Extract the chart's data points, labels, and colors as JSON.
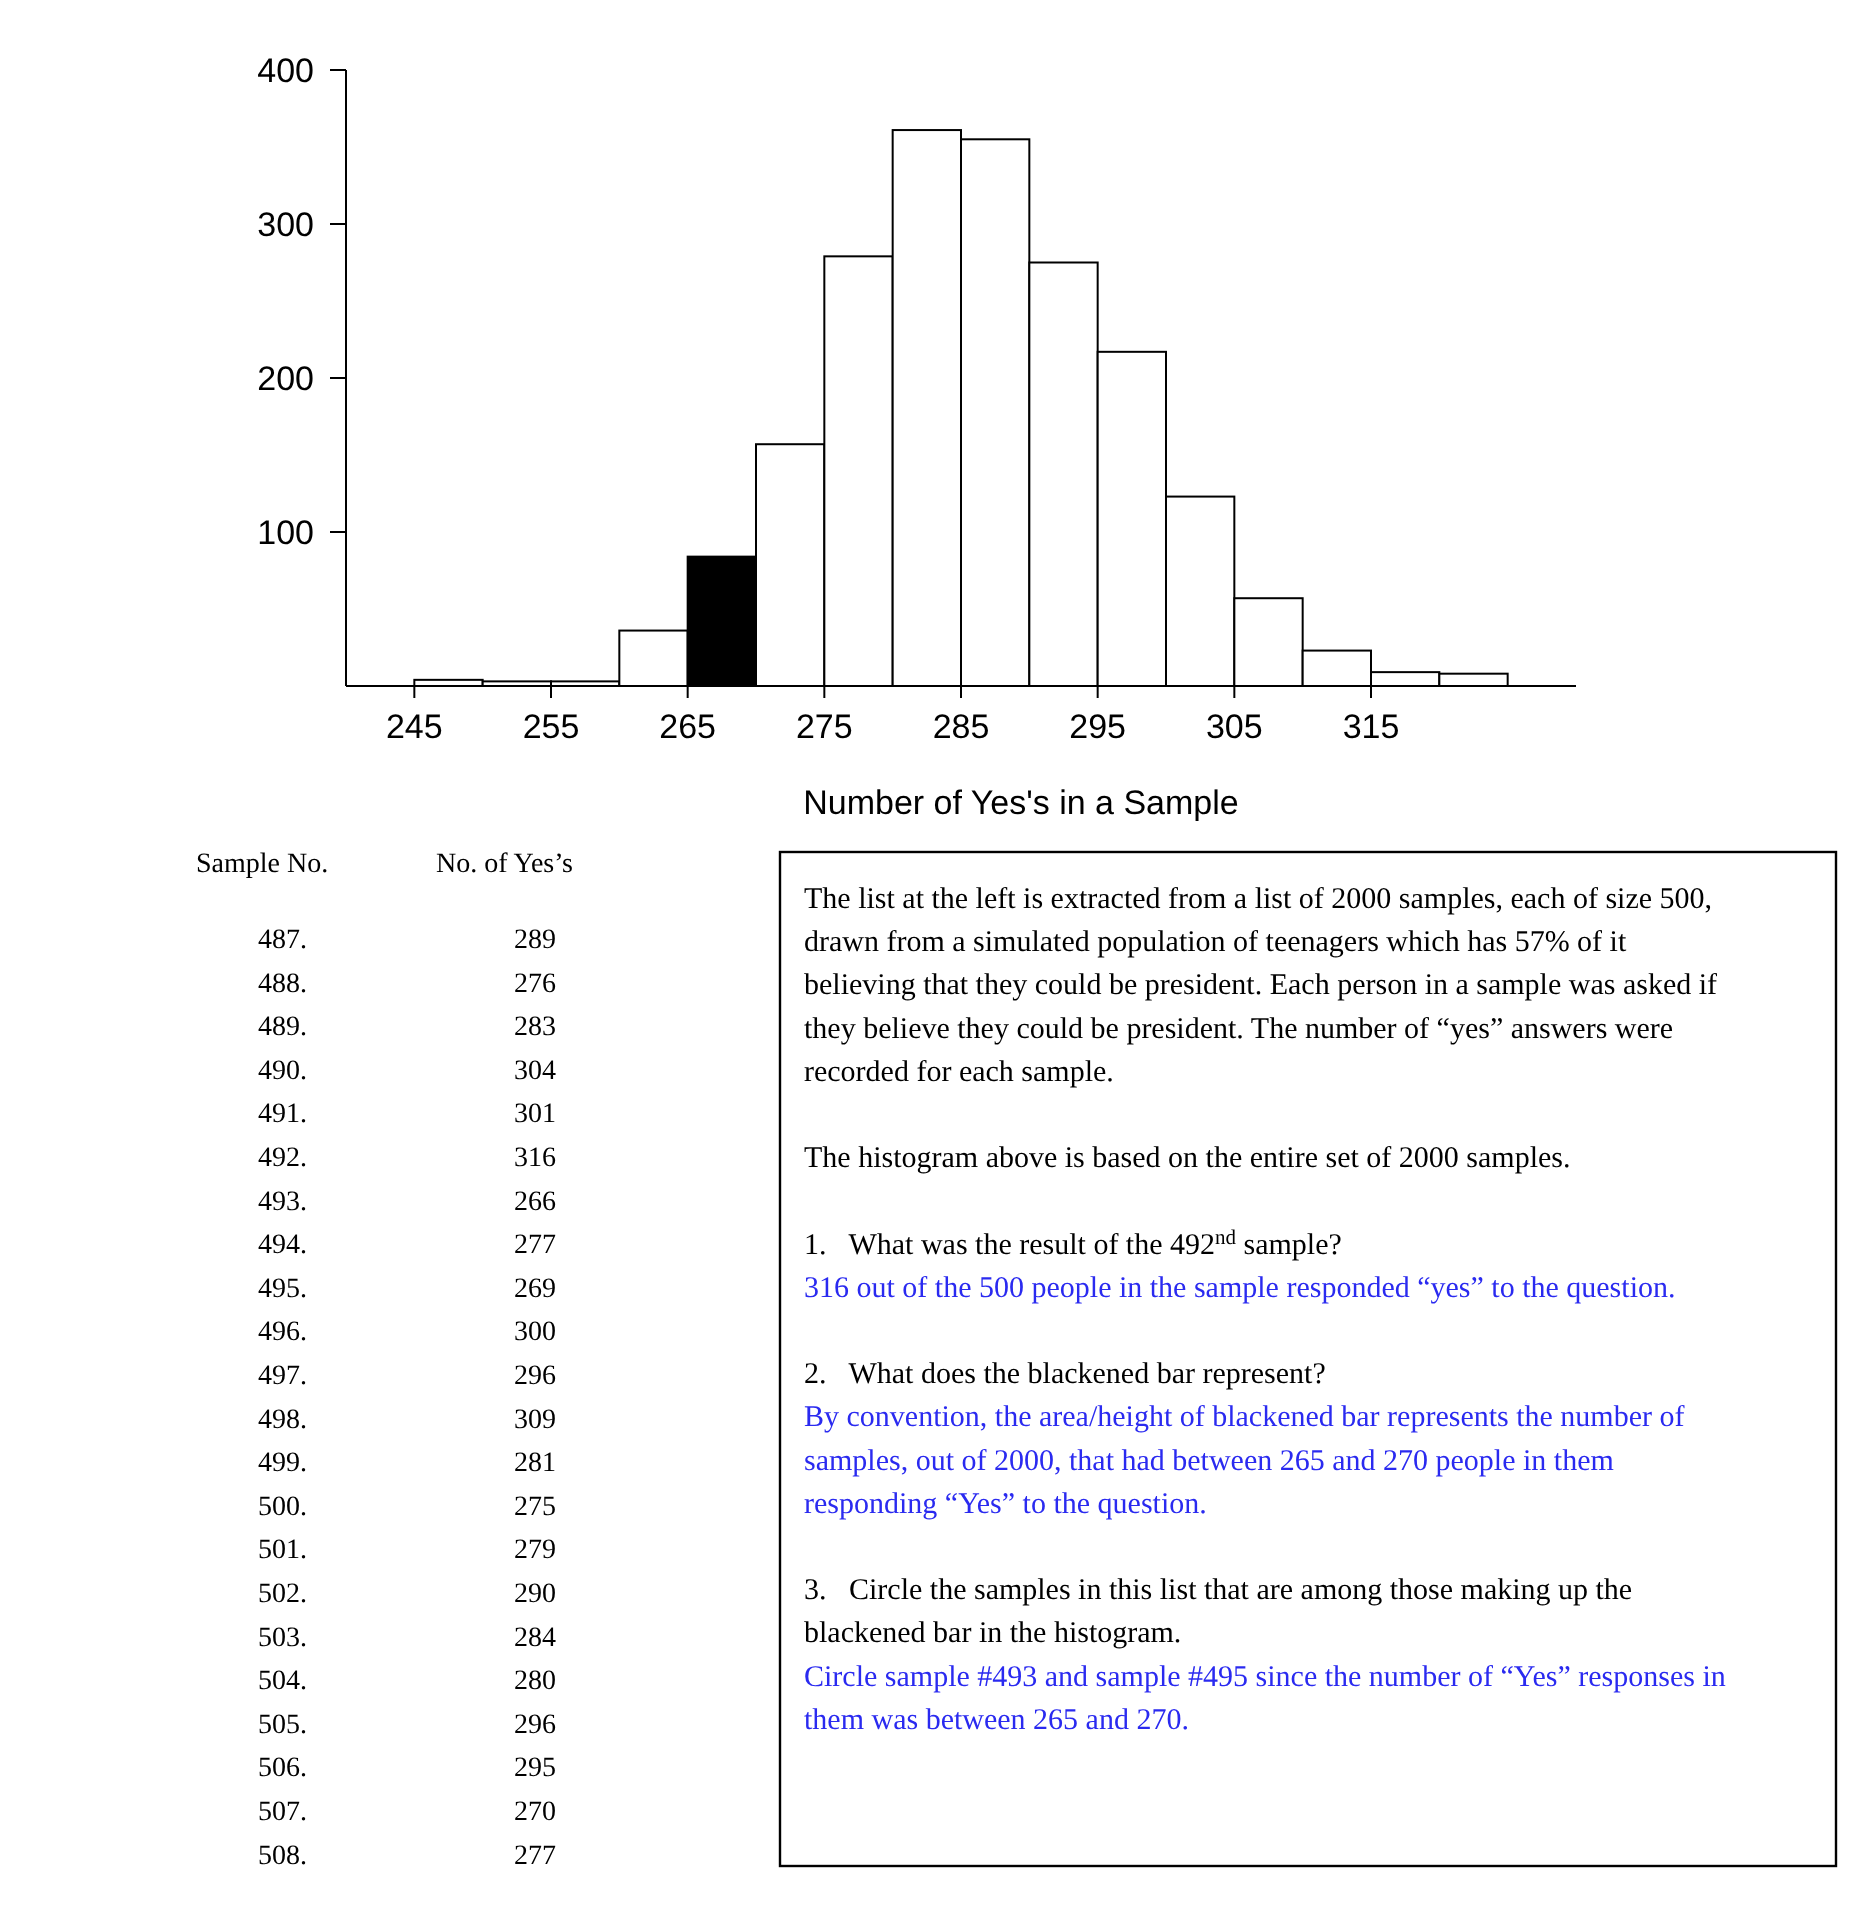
{
  "chart_data": [
    {
      "type": "histogram",
      "xlabel": "Number of Yes's in a Sample",
      "bins": [
        245,
        250,
        255,
        260,
        265,
        270,
        275,
        280,
        285,
        290,
        295,
        300,
        305,
        310,
        315,
        320,
        325
      ],
      "values": [
        4,
        3,
        3,
        36,
        84,
        157,
        279,
        361,
        355,
        275,
        217,
        123,
        57,
        23,
        9,
        8
      ],
      "colors": [
        "#ffffff",
        "#ffffff",
        "#ffffff",
        "#ffffff",
        "#000000",
        "#ffffff",
        "#ffffff",
        "#ffffff",
        "#ffffff",
        "#ffffff",
        "#ffffff",
        "#ffffff",
        "#ffffff",
        "#ffffff",
        "#ffffff",
        "#ffffff"
      ],
      "xlim": [
        240,
        330
      ],
      "xticks": [
        245,
        255,
        265,
        275,
        285,
        295,
        305,
        315
      ],
      "ylim": [
        0,
        400
      ],
      "yticks": [
        100,
        200,
        300,
        400
      ],
      "grid": false
    },
    {
      "type": "other",
      "annotations": [
        "Sample No.",
        "No. of Yes’s",
        "487. 289",
        "488. 276",
        "489. 283",
        "490. 304",
        "491. 301",
        "492. 316",
        "493. 266",
        "494. 277",
        "495. 269",
        "496. 300",
        "497. 296",
        "498. 309",
        "499. 281",
        "500. 275",
        "501. 279",
        "502. 290",
        "503. 284",
        "504. 280",
        "505. 296",
        "506. 295",
        "507. 270",
        "508. 277"
      ]
    },
    {
      "type": "other",
      "annotations": [
        "The list at the left is extracted from a list of 2000 samples, each of size 500, drawn from a simulated population of teenagers which has 57% of it believing that they could be president. Each person in a sample was asked if they believe they could be president. The number of “yes” answers were recorded for each sample.",
        "The histogram above is based on the entire set of 2000 samples.",
        "1.   What was the result of the 492$^{nd}$ sample?",
        "316 out of the 500 people in the sample responded “yes” to the question.",
        "2.   What does the blackened bar represent?",
        "By convention, the area/height of blackened bar represents the number of samples, out of 2000, that had between 265 and 270 people in them responding “Yes” to the question.",
        "3.   Circle the samples in this list that are among those making up the blackened bar in the histogram.",
        "Circle sample #493 and sample #495 since the number of “Yes” responses in them was between 265 and 270."
      ],
      "colors": [
        "#000000",
        "#000000",
        "#000000",
        "#2a2af0",
        "#000000",
        "#2a2af0",
        "#000000",
        "#2a2af0"
      ]
    }
  ]
}
